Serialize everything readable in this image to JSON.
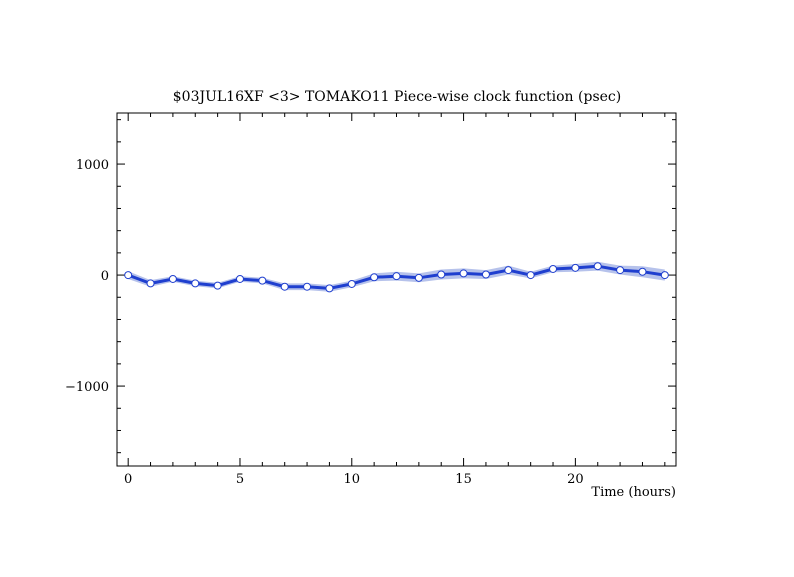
{
  "chart_data": {
    "type": "line",
    "title": "$03JUL16XF <3>  TOMAKO11  Piece-wise clock function (psec)",
    "xlabel": "Time (hours)",
    "ylabel": "",
    "xlim": [
      -0.5,
      24.5
    ],
    "ylim": [
      -1720,
      1460
    ],
    "x_ticks": [
      0,
      5,
      10,
      15,
      20
    ],
    "x_tick_labels": [
      "0",
      "5",
      "10",
      "15",
      "20"
    ],
    "y_ticks": [
      -1000,
      0,
      1000
    ],
    "y_tick_labels": [
      "−1000",
      "0",
      "1000"
    ],
    "grid": false,
    "legend": "none",
    "colors": {
      "line": "#1f3fcf",
      "band": "#a9b7e8",
      "marker_fill": "#ffffff",
      "marker_edge": "#1f3fcf"
    },
    "series": [
      {
        "x": [
          0,
          1,
          2,
          3,
          4,
          5,
          6,
          7,
          8,
          9,
          10,
          11,
          12,
          13,
          14,
          15,
          16,
          17,
          18,
          19,
          20,
          21,
          22,
          23,
          24
        ],
        "values": [
          0,
          -75,
          -35,
          -75,
          -95,
          -35,
          -50,
          -105,
          -105,
          -120,
          -80,
          -20,
          -10,
          -25,
          5,
          15,
          5,
          45,
          0,
          55,
          65,
          80,
          45,
          30,
          0
        ],
        "band_halfwidth": [
          35,
          30,
          25,
          25,
          25,
          25,
          25,
          30,
          30,
          30,
          30,
          35,
          40,
          40,
          45,
          45,
          40,
          40,
          30,
          30,
          35,
          40,
          40,
          50,
          50
        ]
      }
    ]
  }
}
